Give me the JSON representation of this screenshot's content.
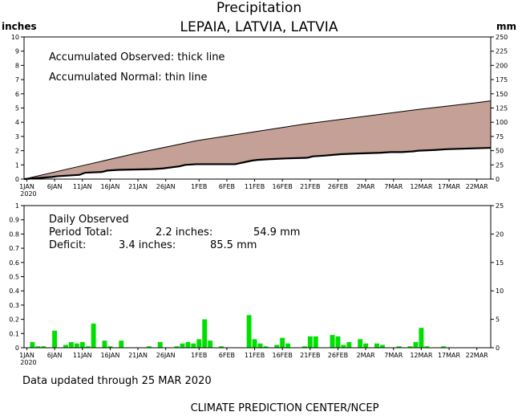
{
  "title": "Precipitation",
  "subtitle": "LEPAIA, LATVIA, LATVIA",
  "units": {
    "left": "inches",
    "right": "mm"
  },
  "top_panel": {
    "line1": "Accumulated Observed: thick line",
    "line2": "Accumulated Normal: thin line"
  },
  "bottom_panel": {
    "heading": "Daily Observed",
    "period_label": "Period Total:",
    "period_inches": "2.2 inches:",
    "period_mm": "54.9  mm",
    "deficit_label": "Deficit:",
    "deficit_inches": "3.4 inches:",
    "deficit_mm": "85.5  mm"
  },
  "footer": {
    "updated": "Data updated through 25 MAR 2020",
    "credit": "CLIMATE PREDICTION CENTER/NCEP"
  },
  "colors": {
    "fill": "#c4a097",
    "bar": "#00e000",
    "line": "#000000"
  },
  "chart_data": [
    {
      "type": "area",
      "xlabel": "",
      "ylabel": "inches",
      "y2label": "mm",
      "ylim": [
        0,
        10
      ],
      "y2lim": [
        0,
        250
      ],
      "yticks": [
        "0",
        "1",
        "2",
        "3",
        "4",
        "5",
        "6",
        "7",
        "8",
        "9",
        "10"
      ],
      "y2ticks": [
        "0",
        "25",
        "50",
        "75",
        "100",
        "125",
        "150",
        "175",
        "200",
        "225",
        "250"
      ],
      "xticks": [
        "1JAN",
        "6JAN",
        "11JAN",
        "16JAN",
        "21JAN",
        "26JAN",
        "1FEB",
        "6FEB",
        "11FEB",
        "16FEB",
        "21FEB",
        "26FEB",
        "2MAR",
        "7MAR",
        "12MAR",
        "17MAR",
        "22MAR"
      ],
      "xtick_days": [
        0,
        5,
        10,
        15,
        20,
        25,
        31,
        36,
        41,
        46,
        51,
        56,
        61,
        66,
        71,
        76,
        81
      ],
      "year_label": "2020",
      "normal": {
        "x": [
          0,
          10,
          20,
          31,
          41,
          51,
          61,
          71,
          81,
          84
        ],
        "y": [
          0,
          0.9,
          1.8,
          2.7,
          3.3,
          3.9,
          4.4,
          4.9,
          5.35,
          5.5
        ]
      },
      "observed": {
        "x": [
          0,
          5,
          6,
          8,
          10,
          11,
          14,
          15,
          17,
          23,
          25,
          28,
          29,
          31,
          35,
          38,
          41,
          42,
          44,
          47,
          51,
          52,
          54,
          57,
          60,
          64,
          66,
          68,
          70,
          71,
          74,
          76,
          80,
          84
        ],
        "y": [
          0,
          0.15,
          0.2,
          0.25,
          0.3,
          0.45,
          0.5,
          0.6,
          0.65,
          0.7,
          0.75,
          0.9,
          1.0,
          1.05,
          1.05,
          1.05,
          1.3,
          1.35,
          1.4,
          1.45,
          1.5,
          1.6,
          1.65,
          1.75,
          1.8,
          1.85,
          1.9,
          1.9,
          1.95,
          2.0,
          2.05,
          2.1,
          2.15,
          2.2
        ]
      }
    },
    {
      "type": "bar",
      "xlabel": "",
      "ylabel": "inches",
      "y2label": "mm",
      "ylim": [
        0,
        1
      ],
      "y2lim": [
        0,
        25
      ],
      "yticks": [
        "0",
        "0.1",
        "0.2",
        "0.3",
        "0.4",
        "0.5",
        "0.6",
        "0.7",
        "0.8",
        "0.9",
        "1"
      ],
      "y2ticks": [
        "0",
        "5",
        "10",
        "15",
        "20",
        "25"
      ],
      "xticks": [
        "1JAN",
        "6JAN",
        "11JAN",
        "16JAN",
        "21JAN",
        "26JAN",
        "1FEB",
        "6FEB",
        "11FEB",
        "16FEB",
        "21FEB",
        "26FEB",
        "2MAR",
        "7MAR",
        "12MAR",
        "17MAR",
        "22MAR"
      ],
      "year_label": "2020",
      "bars": {
        "day": [
          1,
          2,
          3,
          5,
          7,
          8,
          9,
          10,
          11,
          12,
          14,
          15,
          17,
          22,
          24,
          27,
          28,
          29,
          30,
          31,
          32,
          33,
          35,
          40,
          41,
          42,
          43,
          45,
          46,
          47,
          50,
          51,
          52,
          55,
          56,
          57,
          58,
          60,
          61,
          63,
          64,
          67,
          69,
          70,
          71,
          72,
          75
        ],
        "value": [
          0.04,
          0.01,
          0.01,
          0.12,
          0.02,
          0.04,
          0.03,
          0.04,
          0.01,
          0.17,
          0.05,
          0.01,
          0.05,
          0.01,
          0.04,
          0.01,
          0.03,
          0.04,
          0.03,
          0.06,
          0.2,
          0.05,
          0.01,
          0.23,
          0.06,
          0.03,
          0.01,
          0.02,
          0.07,
          0.03,
          0.01,
          0.08,
          0.08,
          0.09,
          0.08,
          0.02,
          0.04,
          0.06,
          0.03,
          0.03,
          0.02,
          0.01,
          0.01,
          0.04,
          0.14,
          0.01,
          0.01
        ]
      }
    }
  ]
}
